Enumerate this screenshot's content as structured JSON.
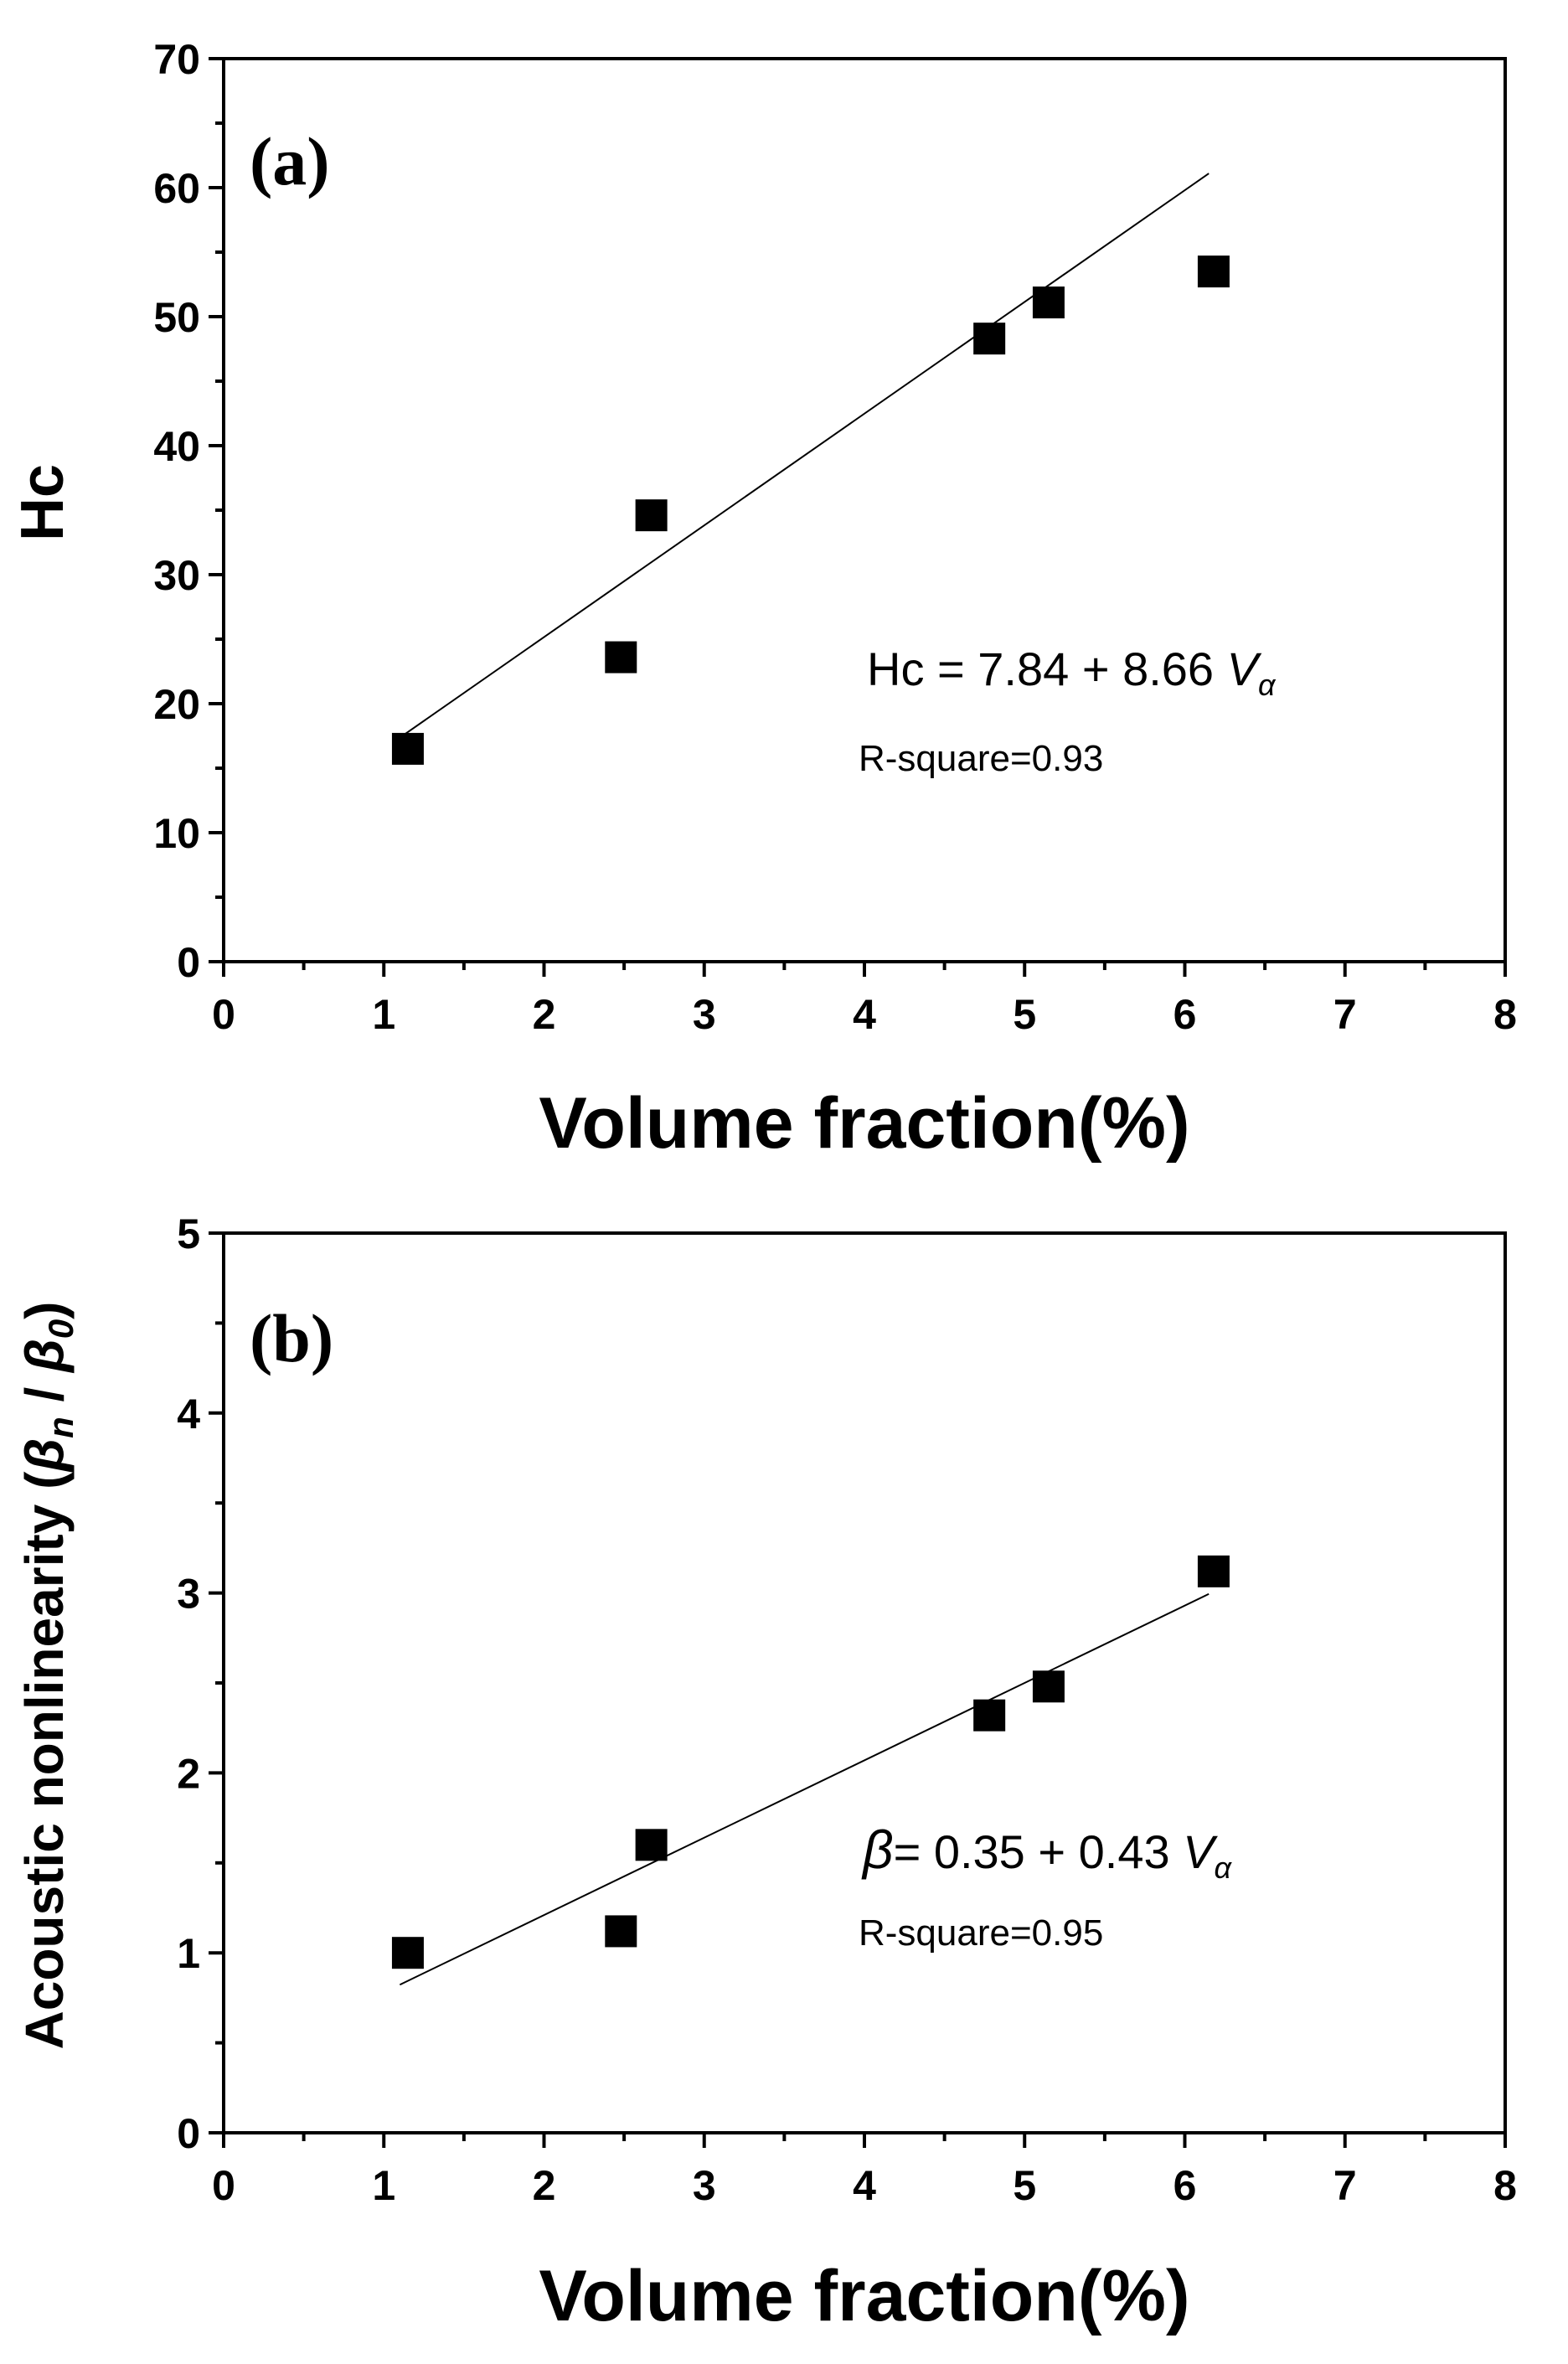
{
  "chart_data": [
    {
      "type": "scatter",
      "panel_label": "(a)",
      "ylabel": "Hc",
      "xlabel": "Volume fraction(%)",
      "xlim": [
        0,
        8
      ],
      "ylim": [
        0,
        70
      ],
      "xticks": [
        "0",
        "1",
        "2",
        "3",
        "4",
        "5",
        "6",
        "7",
        "8"
      ],
      "yticks": [
        "0",
        "10",
        "20",
        "30",
        "40",
        "50",
        "60",
        "70"
      ],
      "series": [
        {
          "name": "Hc",
          "x": [
            1.15,
            2.48,
            2.67,
            4.78,
            5.15,
            6.18
          ],
          "y": [
            16.5,
            23.6,
            34.6,
            48.3,
            51.1,
            53.5
          ]
        }
      ],
      "fit": {
        "intercept": 7.84,
        "slope": 8.66,
        "x_range": [
          1.1,
          6.15
        ]
      },
      "equation": {
        "lhs": "Hc = 7.84 + 8.66 ",
        "var": "V",
        "sub": "α"
      },
      "r_square": "R-square=0.93"
    },
    {
      "type": "scatter",
      "panel_label": "(b)",
      "ylabel": {
        "main": "Acoustic nonlinearity (",
        "beta": "β",
        "sub_n": "n",
        "sep": " / ",
        "sub_0": "0",
        "close": ")"
      },
      "xlabel": "Volume fraction(%)",
      "xlim": [
        0,
        8
      ],
      "ylim": [
        0,
        5
      ],
      "xticks": [
        "0",
        "1",
        "2",
        "3",
        "4",
        "5",
        "6",
        "7",
        "8"
      ],
      "yticks": [
        "0",
        "1",
        "2",
        "3",
        "4",
        "5"
      ],
      "series": [
        {
          "name": "β",
          "x": [
            1.15,
            2.48,
            2.67,
            4.78,
            5.15,
            6.18
          ],
          "y": [
            1.0,
            1.12,
            1.6,
            2.32,
            2.48,
            3.12
          ]
        }
      ],
      "fit": {
        "intercept": 0.35,
        "slope": 0.43,
        "x_range": [
          1.1,
          6.15
        ]
      },
      "equation": {
        "beta": "β",
        "lhs": "= 0.35 + 0.43 ",
        "var": "V",
        "sub": "α"
      },
      "r_square": "R-square=0.95"
    }
  ]
}
